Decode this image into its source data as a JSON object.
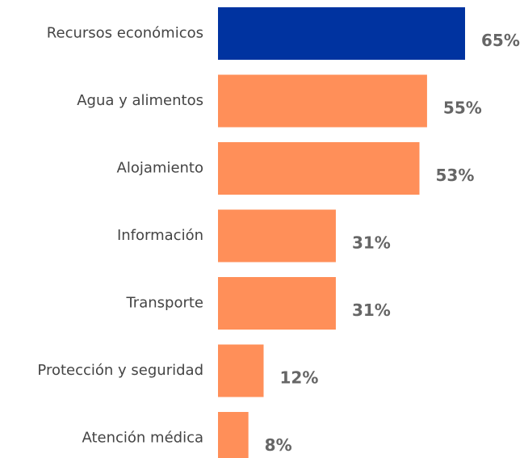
{
  "chart_data": {
    "type": "bar",
    "orientation": "horizontal",
    "categories": [
      "Recursos económicos",
      "Agua y alimentos",
      "Alojamiento",
      "Información",
      "Transporte",
      "Protección y seguridad",
      "Atención médica"
    ],
    "values": [
      65,
      55,
      53,
      31,
      31,
      12,
      8
    ],
    "value_labels": [
      "65%",
      "55%",
      "53%",
      "31%",
      "31%",
      "12%",
      "8%"
    ],
    "colors": [
      "#0033a0",
      "#ff8f59",
      "#ff8f59",
      "#ff8f59",
      "#ff8f59",
      "#ff8f59",
      "#ff8f59"
    ]
  }
}
